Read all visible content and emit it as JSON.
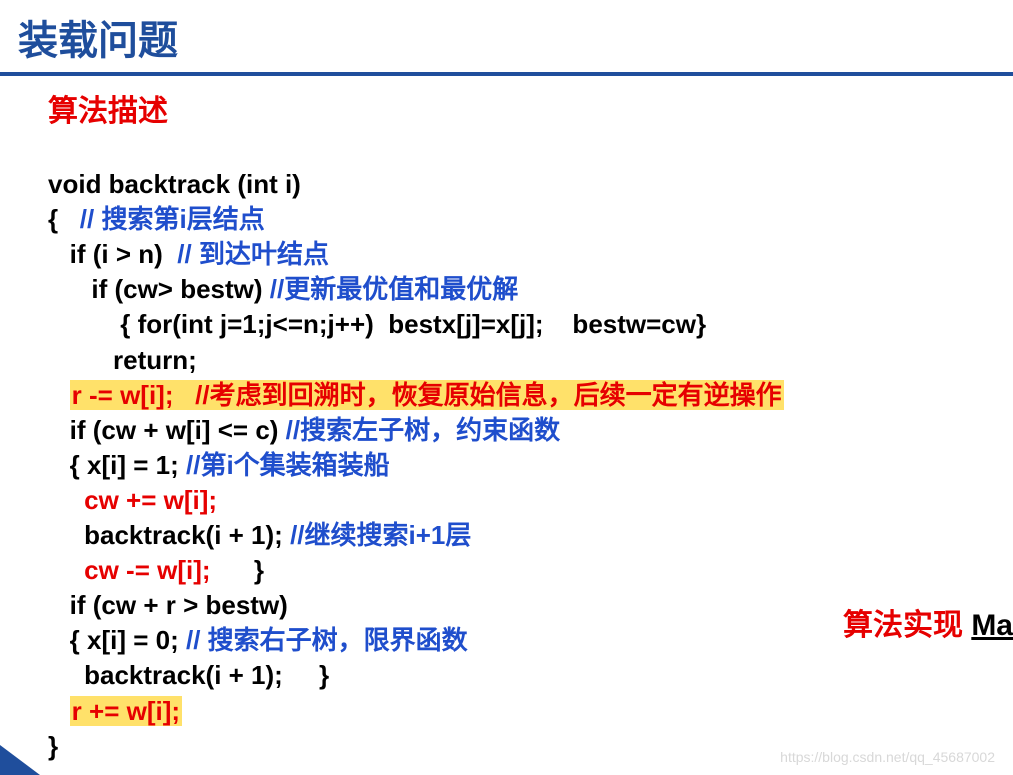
{
  "title": "装载问题",
  "section_title": "算法描述",
  "colors": {
    "title_blue": "#1f4e9c",
    "code_blue": "#1f4ecc",
    "red": "#e60000",
    "highlight_bg": "#ffe16a",
    "black": "#000000",
    "white": "#ffffff",
    "watermark_gray": "#d8d8d8"
  },
  "typography": {
    "title_fontsize": 40,
    "section_fontsize": 30,
    "code_fontsize": 26,
    "code_lineheight": 1.35,
    "font_family": "Microsoft YaHei"
  },
  "code": {
    "l1": {
      "t1": "void backtrack (int i)"
    },
    "l2": {
      "t1": "{   ",
      "t2": "// 搜索第i层结点"
    },
    "l3": {
      "t1": "   if (i > n)  ",
      "t2": "// 到达叶结点"
    },
    "l4": {
      "t1": "      if (cw> bestw) ",
      "t2": "//更新最优值和最优解"
    },
    "l5": {
      "t1": "          { for(int j=1;j<=n;j++)  bestx[j]=x[j];    bestw=cw}"
    },
    "l6": {
      "t1": "         return;"
    },
    "l7": {
      "t1": "   ",
      "t2": "r -= w[i];   //考虑到回溯时，恢复原始信息，后续一定有逆操作"
    },
    "l8": {
      "t1": "   if (cw + w[i] <= c) ",
      "t2": "//搜索左子树，约束函数"
    },
    "l9": {
      "t1": "   { x[i] = 1; ",
      "t2": "//第i个集装箱装船"
    },
    "l10": {
      "t1": "     ",
      "t2": "cw += w[i];"
    },
    "l11": {
      "t1": "     backtrack(i + 1); ",
      "t2": "//继续搜索i+1层"
    },
    "l12": {
      "t1": "     ",
      "t2": "cw -= w[i];",
      "t3": "      }"
    },
    "l13": {
      "t1": "   if (cw + r > bestw)"
    },
    "l14": {
      "t1": "   { x[i] = 0; ",
      "t2": "// 搜索右子树，限界函数"
    },
    "l15": {
      "t1": "     backtrack(i + 1);     }"
    },
    "l16": {
      "t1": "   ",
      "t2": "r += w[i];"
    },
    "l17": {
      "t1": "}"
    }
  },
  "side_label": {
    "red": "算法实现 ",
    "link": "Ma"
  },
  "watermark": "https://blog.csdn.net/qq_45687002"
}
